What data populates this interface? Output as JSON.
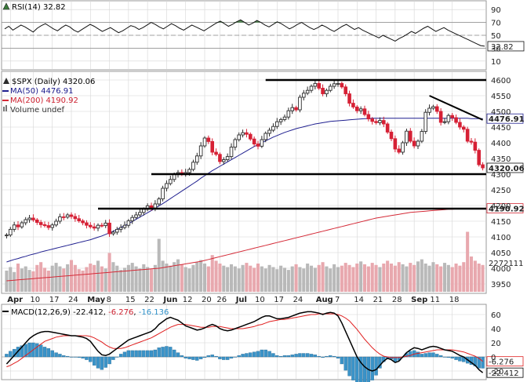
{
  "chart_data": [
    {
      "type": "line",
      "panel": "rsi",
      "header": {
        "name": "RSI(14)",
        "value": "32.82"
      },
      "yticks": [
        "90",
        "70",
        "50",
        "30",
        "10"
      ],
      "ylim": [
        0,
        100
      ],
      "reference_lines": [
        70,
        50,
        30
      ],
      "last_value_label": "32.82",
      "values": [
        60,
        64,
        58,
        62,
        66,
        63,
        59,
        55,
        61,
        65,
        68,
        64,
        60,
        57,
        62,
        66,
        63,
        58,
        55,
        59,
        63,
        67,
        64,
        60,
        56,
        59,
        62,
        58,
        54,
        57,
        61,
        65,
        63,
        59,
        62,
        66,
        70,
        67,
        63,
        60,
        64,
        68,
        65,
        61,
        58,
        62,
        66,
        63,
        60,
        57,
        61,
        65,
        69,
        72,
        68,
        64,
        67,
        71,
        74,
        70,
        66,
        69,
        73,
        70,
        66,
        63,
        67,
        71,
        68,
        64,
        60,
        63,
        67,
        70,
        66,
        62,
        59,
        62,
        66,
        63,
        59,
        56,
        60,
        64,
        67,
        63,
        59,
        62,
        58,
        55,
        52,
        49,
        46,
        50,
        47,
        44,
        41,
        45,
        48,
        52,
        56,
        53,
        57,
        61,
        64,
        60,
        56,
        59,
        62,
        58,
        55,
        52,
        49,
        46,
        43,
        40,
        37,
        34,
        33
      ]
    },
    {
      "type": "candlestick",
      "panel": "price",
      "header": [
        {
          "text": "$SPX (Daily) 4320.06",
          "color": "#000000"
        },
        {
          "text": "MA(50) 4476.91",
          "color": "#1a1a8c"
        },
        {
          "text": "MA(200) 4190.92",
          "color": "#cc1f2e"
        },
        {
          "text": "Volume undef",
          "color": "#333333"
        }
      ],
      "yticks": [
        "4600",
        "4550",
        "4500",
        "4450",
        "4400",
        "4350",
        "4300",
        "4250",
        "4200",
        "4150",
        "4100",
        "4050",
        "4000",
        "3950"
      ],
      "ylim": [
        3925,
        4625
      ],
      "start_close": 4105,
      "closes": [
        4106,
        4124,
        4138,
        4132,
        4145,
        4155,
        4160,
        4154,
        4146,
        4139,
        4136,
        4130,
        4138,
        4150,
        4164,
        4163,
        4170,
        4165,
        4158,
        4151,
        4145,
        4137,
        4132,
        4128,
        4137,
        4136,
        4144,
        4110,
        4115,
        4124,
        4130,
        4137,
        4151,
        4162,
        4170,
        4178,
        4188,
        4199,
        4192,
        4205,
        4221,
        4255,
        4270,
        4283,
        4299,
        4305,
        4300,
        4305,
        4315,
        4338,
        4358,
        4390,
        4415,
        4404,
        4370,
        4363,
        4340,
        4346,
        4356,
        4386,
        4410,
        4425,
        4432,
        4427,
        4412,
        4396,
        4389,
        4410,
        4430,
        4440,
        4452,
        4467,
        4474,
        4482,
        4502,
        4512,
        4505,
        4545,
        4558,
        4567,
        4580,
        4589,
        4574,
        4556,
        4567,
        4580,
        4588,
        4589,
        4578,
        4556,
        4526,
        4514,
        4502,
        4508,
        4490,
        4476,
        4468,
        4464,
        4471,
        4460,
        4434,
        4413,
        4380,
        4370,
        4400,
        4437,
        4405,
        4390,
        4405,
        4436,
        4497,
        4510,
        4515,
        4500,
        4465,
        4467,
        4487,
        4480,
        4465,
        4450,
        4443,
        4405,
        4402,
        4376,
        4330,
        4320
      ],
      "ma50": [
        4020,
        4024,
        4028,
        4031,
        4035,
        4038,
        4042,
        4045,
        4048,
        4052,
        4055,
        4058,
        4061,
        4064,
        4067,
        4070,
        4073,
        4076,
        4079,
        4082,
        4085,
        4088,
        4091,
        4095,
        4099,
        4103,
        4108,
        4113,
        4118,
        4124,
        4130,
        4136,
        4142,
        4149,
        4156,
        4163,
        4170,
        4177,
        4184,
        4191,
        4199,
        4206,
        4214,
        4222,
        4230,
        4238,
        4246,
        4254,
        4262,
        4270,
        4278,
        4287,
        4295,
        4303,
        4311,
        4318,
        4325,
        4332,
        4339,
        4346,
        4353,
        4360,
        4367,
        4374,
        4381,
        4388,
        4394,
        4400,
        4406,
        4412,
        4418,
        4423,
        4428,
        4433,
        4437,
        4441,
        4445,
        4448,
        4451,
        4454,
        4457,
        4460,
        4462,
        4464,
        4466,
        4468,
        4469,
        4470,
        4471,
        4472,
        4473,
        4474,
        4475,
        4476,
        4477,
        4477,
        4478,
        4478,
        4478,
        4478,
        4478,
        4478,
        4478,
        4478,
        4478,
        4478,
        4478,
        4478,
        4478,
        4478,
        4478,
        4478,
        4478,
        4478,
        4478,
        4478,
        4478,
        4478,
        4478,
        4478,
        4478,
        4478,
        4477,
        4477,
        4477,
        4477
      ],
      "ma200": [
        3960,
        3961,
        3962,
        3963,
        3964,
        3965,
        3966,
        3967,
        3968,
        3969,
        3970,
        3971,
        3972,
        3973,
        3974,
        3975,
        3976,
        3977,
        3978,
        3979,
        3980,
        3981,
        3982,
        3983,
        3984,
        3985,
        3986,
        3987,
        3988,
        3989,
        3990,
        3991,
        3992,
        3993,
        3994,
        3995,
        3996,
        3997,
        3998,
        3999,
        4000,
        4002,
        4004,
        4006,
        4008,
        4010,
        4012,
        4014,
        4016,
        4018,
        4020,
        4022,
        4025,
        4028,
        4031,
        4034,
        4037,
        4040,
        4043,
        4046,
        4049,
        4052,
        4055,
        4058,
        4061,
        4064,
        4067,
        4070,
        4073,
        4076,
        4079,
        4082,
        4085,
        4088,
        4091,
        4094,
        4097,
        4100,
        4103,
        4106,
        4109,
        4112,
        4115,
        4118,
        4121,
        4124,
        4127,
        4130,
        4133,
        4136,
        4139,
        4142,
        4145,
        4148,
        4151,
        4154,
        4157,
        4160,
        4162,
        4164,
        4166,
        4168,
        4170,
        4172,
        4174,
        4176,
        4178,
        4179,
        4180,
        4181,
        4182,
        4183,
        4184,
        4185,
        4186,
        4187,
        4188,
        4188,
        4189,
        4189,
        4190,
        4190,
        4190,
        4191,
        4191,
        4191
      ],
      "ma_end_labels": {
        "ma50": "4476.91",
        "ma200": "4190.92",
        "close": "4320.06"
      },
      "horizontal_levels": [
        4600,
        4300,
        4190
      ],
      "trendline": {
        "from_index": 111,
        "from_value": 4550,
        "to_index": 125,
        "to_value": 4473
      },
      "volume_axis_label": "2272111",
      "volume": [
        0.3,
        0.35,
        0.28,
        0.4,
        0.33,
        0.36,
        0.31,
        0.29,
        0.38,
        0.42,
        0.34,
        0.3,
        0.37,
        0.41,
        0.36,
        0.33,
        0.39,
        0.45,
        0.38,
        0.32,
        0.3,
        0.35,
        0.4,
        0.38,
        0.44,
        0.36,
        0.33,
        0.55,
        0.42,
        0.37,
        0.31,
        0.34,
        0.38,
        0.41,
        0.36,
        0.33,
        0.39,
        0.35,
        0.32,
        0.38,
        0.75,
        0.44,
        0.4,
        0.37,
        0.42,
        0.46,
        0.39,
        0.35,
        0.33,
        0.38,
        0.42,
        0.45,
        0.4,
        0.36,
        0.52,
        0.44,
        0.4,
        0.37,
        0.35,
        0.39,
        0.36,
        0.33,
        0.38,
        0.41,
        0.37,
        0.34,
        0.4,
        0.36,
        0.33,
        0.38,
        0.35,
        0.32,
        0.37,
        0.34,
        0.31,
        0.36,
        0.39,
        0.35,
        0.33,
        0.4,
        0.37,
        0.34,
        0.38,
        0.42,
        0.36,
        0.33,
        0.39,
        0.35,
        0.37,
        0.41,
        0.38,
        0.35,
        0.4,
        0.43,
        0.39,
        0.36,
        0.41,
        0.38,
        0.35,
        0.4,
        0.44,
        0.4,
        0.37,
        0.42,
        0.39,
        0.36,
        0.41,
        0.38,
        0.43,
        0.46,
        0.4,
        0.37,
        0.42,
        0.39,
        0.36,
        0.41,
        0.38,
        0.35,
        0.4,
        0.37,
        0.42,
        0.85,
        0.5,
        0.44,
        0.4,
        0.38
      ]
    },
    {
      "type": "line",
      "panel": "macd",
      "header": [
        {
          "text": "MACD(12,26,9)",
          "color": "#000000"
        },
        {
          "text": "-22.412",
          "color": "#000000"
        },
        {
          "text": "-6.276",
          "color": "#cc1f2e"
        },
        {
          "text": "-16.136",
          "color": "#2e8fc7"
        }
      ],
      "yticks": [
        "60",
        "40",
        "20",
        "0",
        "-20"
      ],
      "ylim": [
        -30,
        70
      ],
      "end_labels": {
        "signal": "-6.276",
        "macd": "-22.412"
      },
      "macd": [
        -10,
        -4,
        2,
        8,
        14,
        20,
        26,
        30,
        33,
        35,
        36,
        36,
        35,
        34,
        33,
        32,
        31,
        30,
        30,
        29,
        28,
        26,
        22,
        15,
        8,
        3,
        2,
        4,
        8,
        12,
        16,
        20,
        24,
        26,
        28,
        30,
        32,
        34,
        36,
        40,
        46,
        50,
        54,
        56,
        54,
        52,
        48,
        44,
        42,
        40,
        38,
        39,
        41,
        44,
        46,
        44,
        40,
        38,
        37,
        38,
        40,
        42,
        44,
        46,
        48,
        50,
        53,
        56,
        58,
        58,
        56,
        54,
        54,
        55,
        56,
        58,
        60,
        62,
        63,
        64,
        64,
        63,
        62,
        60,
        62,
        63,
        62,
        58,
        48,
        36,
        24,
        12,
        0,
        -8,
        -14,
        -18,
        -20,
        -18,
        -12,
        -6,
        -2,
        -4,
        -8,
        -6,
        0,
        6,
        10,
        13,
        12,
        10,
        12,
        14,
        15,
        14,
        12,
        10,
        9,
        8,
        5,
        2,
        0,
        -4,
        -8,
        -12,
        -18,
        -22.4
      ],
      "signal": [
        -14,
        -12,
        -9,
        -6,
        -2,
        2,
        6,
        10,
        14,
        18,
        22,
        24,
        26,
        28,
        29,
        30,
        30,
        30,
        30,
        30,
        30,
        30,
        29,
        27,
        24,
        21,
        17,
        14,
        12,
        12,
        12,
        13,
        15,
        17,
        19,
        21,
        23,
        25,
        27,
        30,
        33,
        36,
        39,
        42,
        44,
        46,
        46,
        46,
        45,
        44,
        43,
        42,
        42,
        42,
        43,
        43,
        43,
        42,
        41,
        40,
        40,
        40,
        40,
        41,
        42,
        43,
        45,
        46,
        48,
        50,
        51,
        52,
        53,
        53,
        54,
        55,
        56,
        57,
        58,
        59,
        60,
        60,
        61,
        61,
        61,
        61,
        61,
        60,
        58,
        55,
        51,
        45,
        39,
        32,
        25,
        19,
        13,
        8,
        4,
        1,
        0,
        -1,
        -1,
        -1,
        0,
        1,
        2,
        4,
        5,
        6,
        7,
        8,
        9,
        10,
        10,
        10,
        10,
        10,
        9,
        8,
        7,
        5,
        3,
        1,
        -2,
        -6.3
      ],
      "xticks": [
        "Apr",
        "10",
        "17",
        "24",
        "May",
        "8",
        "15",
        "22",
        "Jun",
        "12",
        "20",
        "26",
        "Jul",
        "10",
        "17",
        "24",
        "Aug",
        "7",
        "14",
        "21",
        "28",
        "Sep",
        "11",
        "18"
      ],
      "xtick_bar_index": [
        1,
        7,
        12,
        17,
        22,
        27,
        32,
        37,
        42,
        47,
        52,
        56,
        61,
        66,
        71,
        76,
        82,
        87,
        92,
        97,
        102,
        107,
        112,
        117
      ],
      "bold_xticks": [
        "Apr",
        "May",
        "Jun",
        "Jul",
        "Aug",
        "Sep"
      ]
    }
  ],
  "colors": {
    "up": "#2b2b2b",
    "down": "#d62035",
    "ma50": "#1f1f8f",
    "ma200": "#d42a37",
    "signal": "#e02020",
    "histogram": "#3a93c8",
    "volume_down": "#e8a8ae",
    "volume_up": "#b9b9b9",
    "grid": "#d6d6d6",
    "panel_bg": "#ffffff",
    "rsi_fill": "#3a7a3a"
  }
}
